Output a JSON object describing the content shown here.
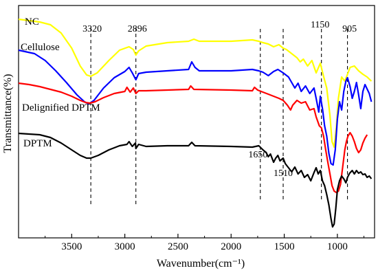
{
  "chart_data": {
    "type": "line",
    "xlabel": "Wavenumber(cm⁻¹)",
    "ylabel": "Transmittance(%)",
    "xlim": [
      4000,
      650
    ],
    "x_reversed": true,
    "y_ticks_shown": false,
    "grid": false,
    "legend": "inline-labels",
    "x_ticks": [
      3500,
      3000,
      2500,
      2000,
      1500,
      1000
    ],
    "x_tick_labels": [
      "3500",
      "3000",
      "2500",
      "2000",
      "1500",
      "1000"
    ],
    "reference_lines": [
      {
        "x": 3320,
        "label": "3320"
      },
      {
        "x": 2896,
        "label": "2896"
      },
      {
        "x": 1725,
        "label": ""
      },
      {
        "x": 1510,
        "label": "1510"
      },
      {
        "x": 1150,
        "label": "1150"
      },
      {
        "x": 905,
        "label": "905"
      }
    ],
    "annotations": [
      {
        "text": "1650",
        "x": 1650
      }
    ],
    "series": [
      {
        "name": "NC",
        "color": "#ffff00",
        "points": [
          [
            4000,
            20
          ],
          [
            3800,
            24
          ],
          [
            3700,
            28
          ],
          [
            3600,
            40
          ],
          [
            3500,
            62
          ],
          [
            3420,
            88
          ],
          [
            3360,
            101
          ],
          [
            3320,
            103
          ],
          [
            3260,
            98
          ],
          [
            3150,
            80
          ],
          [
            3050,
            65
          ],
          [
            2960,
            60
          ],
          [
            2920,
            64
          ],
          [
            2896,
            72
          ],
          [
            2870,
            66
          ],
          [
            2800,
            59
          ],
          [
            2600,
            54
          ],
          [
            2400,
            52
          ],
          [
            2350,
            49
          ],
          [
            2300,
            52
          ],
          [
            2000,
            52
          ],
          [
            1800,
            50
          ],
          [
            1740,
            52
          ],
          [
            1700,
            54
          ],
          [
            1650,
            56
          ],
          [
            1600,
            60
          ],
          [
            1550,
            57
          ],
          [
            1510,
            62
          ],
          [
            1480,
            64
          ],
          [
            1430,
            70
          ],
          [
            1380,
            76
          ],
          [
            1350,
            82
          ],
          [
            1320,
            78
          ],
          [
            1280,
            88
          ],
          [
            1240,
            80
          ],
          [
            1200,
            98
          ],
          [
            1160,
            84
          ],
          [
            1130,
            103
          ],
          [
            1100,
            120
          ],
          [
            1070,
            160
          ],
          [
            1050,
            198
          ],
          [
            1030,
            206
          ],
          [
            1010,
            178
          ],
          [
            990,
            135
          ],
          [
            960,
            104
          ],
          [
            930,
            110
          ],
          [
            905,
            100
          ],
          [
            880,
            90
          ],
          [
            840,
            88
          ],
          [
            800,
            95
          ],
          [
            760,
            100
          ],
          [
            720,
            104
          ],
          [
            680,
            110
          ]
        ]
      },
      {
        "name": "Cellulose",
        "color": "#0000ff",
        "points": [
          [
            4000,
            65
          ],
          [
            3850,
            70
          ],
          [
            3750,
            80
          ],
          [
            3650,
            95
          ],
          [
            3550,
            112
          ],
          [
            3450,
            130
          ],
          [
            3380,
            140
          ],
          [
            3340,
            143
          ],
          [
            3290,
            138
          ],
          [
            3200,
            120
          ],
          [
            3100,
            105
          ],
          [
            3000,
            96
          ],
          [
            2960,
            90
          ],
          [
            2930,
            98
          ],
          [
            2896,
            108
          ],
          [
            2870,
            99
          ],
          [
            2800,
            97
          ],
          [
            2600,
            95
          ],
          [
            2400,
            93
          ],
          [
            2370,
            82
          ],
          [
            2340,
            90
          ],
          [
            2300,
            95
          ],
          [
            2000,
            95
          ],
          [
            1800,
            93
          ],
          [
            1740,
            95
          ],
          [
            1700,
            97
          ],
          [
            1650,
            102
          ],
          [
            1600,
            96
          ],
          [
            1560,
            93
          ],
          [
            1510,
            98
          ],
          [
            1460,
            104
          ],
          [
            1430,
            112
          ],
          [
            1400,
            120
          ],
          [
            1370,
            113
          ],
          [
            1340,
            125
          ],
          [
            1300,
            117
          ],
          [
            1260,
            128
          ],
          [
            1220,
            120
          ],
          [
            1200,
            135
          ],
          [
            1175,
            155
          ],
          [
            1160,
            132
          ],
          [
            1140,
            150
          ],
          [
            1120,
            175
          ],
          [
            1100,
            190
          ],
          [
            1080,
            215
          ],
          [
            1060,
            230
          ],
          [
            1040,
            232
          ],
          [
            1020,
            210
          ],
          [
            1000,
            165
          ],
          [
            980,
            140
          ],
          [
            960,
            152
          ],
          [
            940,
            125
          ],
          [
            920,
            110
          ],
          [
            905,
            105
          ],
          [
            880,
            118
          ],
          [
            860,
            135
          ],
          [
            840,
            125
          ],
          [
            820,
            112
          ],
          [
            800,
            130
          ],
          [
            780,
            150
          ],
          [
            760,
            125
          ],
          [
            740,
            115
          ],
          [
            700,
            128
          ],
          [
            680,
            140
          ]
        ]
      },
      {
        "name": "Delignified DPTM",
        "color": "#ff0000",
        "points": [
          [
            4000,
            113
          ],
          [
            3900,
            115
          ],
          [
            3800,
            118
          ],
          [
            3700,
            122
          ],
          [
            3600,
            126
          ],
          [
            3500,
            132
          ],
          [
            3420,
            138
          ],
          [
            3370,
            141
          ],
          [
            3330,
            142
          ],
          [
            3280,
            140
          ],
          [
            3200,
            134
          ],
          [
            3100,
            128
          ],
          [
            3000,
            125
          ],
          [
            2980,
            119
          ],
          [
            2950,
            126
          ],
          [
            2920,
            120
          ],
          [
            2896,
            128
          ],
          [
            2870,
            124
          ],
          [
            2800,
            124
          ],
          [
            2600,
            123
          ],
          [
            2400,
            122
          ],
          [
            2380,
            117
          ],
          [
            2350,
            122
          ],
          [
            2000,
            123
          ],
          [
            1800,
            124
          ],
          [
            1780,
            119
          ],
          [
            1750,
            123
          ],
          [
            1700,
            126
          ],
          [
            1650,
            129
          ],
          [
            1600,
            132
          ],
          [
            1550,
            135
          ],
          [
            1510,
            138
          ],
          [
            1470,
            145
          ],
          [
            1440,
            152
          ],
          [
            1420,
            145
          ],
          [
            1380,
            138
          ],
          [
            1340,
            142
          ],
          [
            1300,
            140
          ],
          [
            1260,
            152
          ],
          [
            1220,
            150
          ],
          [
            1200,
            162
          ],
          [
            1170,
            175
          ],
          [
            1150,
            178
          ],
          [
            1130,
            190
          ],
          [
            1110,
            210
          ],
          [
            1090,
            228
          ],
          [
            1070,
            245
          ],
          [
            1050,
            262
          ],
          [
            1030,
            270
          ],
          [
            1010,
            272
          ],
          [
            990,
            270
          ],
          [
            970,
            260
          ],
          [
            950,
            235
          ],
          [
            930,
            210
          ],
          [
            915,
            198
          ],
          [
            900,
            190
          ],
          [
            880,
            185
          ],
          [
            860,
            190
          ],
          [
            840,
            198
          ],
          [
            820,
            208
          ],
          [
            800,
            214
          ],
          [
            780,
            210
          ],
          [
            760,
            200
          ],
          [
            740,
            193
          ],
          [
            720,
            188
          ]
        ]
      },
      {
        "name": "DPTM",
        "color": "#000000",
        "points": [
          [
            4000,
            186
          ],
          [
            3900,
            187
          ],
          [
            3800,
            188
          ],
          [
            3700,
            192
          ],
          [
            3600,
            200
          ],
          [
            3500,
            210
          ],
          [
            3420,
            218
          ],
          [
            3360,
            222
          ],
          [
            3320,
            222
          ],
          [
            3250,
            218
          ],
          [
            3150,
            210
          ],
          [
            3050,
            204
          ],
          [
            2980,
            202
          ],
          [
            2960,
            198
          ],
          [
            2930,
            205
          ],
          [
            2900,
            200
          ],
          [
            2896,
            208
          ],
          [
            2870,
            202
          ],
          [
            2800,
            205
          ],
          [
            2600,
            204
          ],
          [
            2400,
            204
          ],
          [
            2370,
            199
          ],
          [
            2340,
            204
          ],
          [
            2000,
            205
          ],
          [
            1800,
            206
          ],
          [
            1740,
            204
          ],
          [
            1700,
            210
          ],
          [
            1670,
            214
          ],
          [
            1650,
            220
          ],
          [
            1630,
            216
          ],
          [
            1600,
            228
          ],
          [
            1580,
            222
          ],
          [
            1560,
            218
          ],
          [
            1540,
            226
          ],
          [
            1510,
            222
          ],
          [
            1490,
            230
          ],
          [
            1460,
            236
          ],
          [
            1430,
            242
          ],
          [
            1400,
            235
          ],
          [
            1370,
            245
          ],
          [
            1340,
            240
          ],
          [
            1310,
            250
          ],
          [
            1280,
            246
          ],
          [
            1250,
            255
          ],
          [
            1220,
            243
          ],
          [
            1200,
            236
          ],
          [
            1180,
            245
          ],
          [
            1160,
            240
          ],
          [
            1140,
            255
          ],
          [
            1120,
            262
          ],
          [
            1100,
            275
          ],
          [
            1080,
            290
          ],
          [
            1060,
            310
          ],
          [
            1045,
            322
          ],
          [
            1030,
            318
          ],
          [
            1015,
            295
          ],
          [
            1000,
            268
          ],
          [
            980,
            255
          ],
          [
            960,
            248
          ],
          [
            940,
            252
          ],
          [
            920,
            258
          ],
          [
            905,
            250
          ],
          [
            885,
            244
          ],
          [
            860,
            240
          ],
          [
            840,
            245
          ],
          [
            820,
            240
          ],
          [
            800,
            244
          ],
          [
            780,
            242
          ],
          [
            760,
            246
          ],
          [
            740,
            245
          ],
          [
            720,
            250
          ],
          [
            700,
            248
          ],
          [
            680,
            252
          ]
        ]
      }
    ]
  }
}
